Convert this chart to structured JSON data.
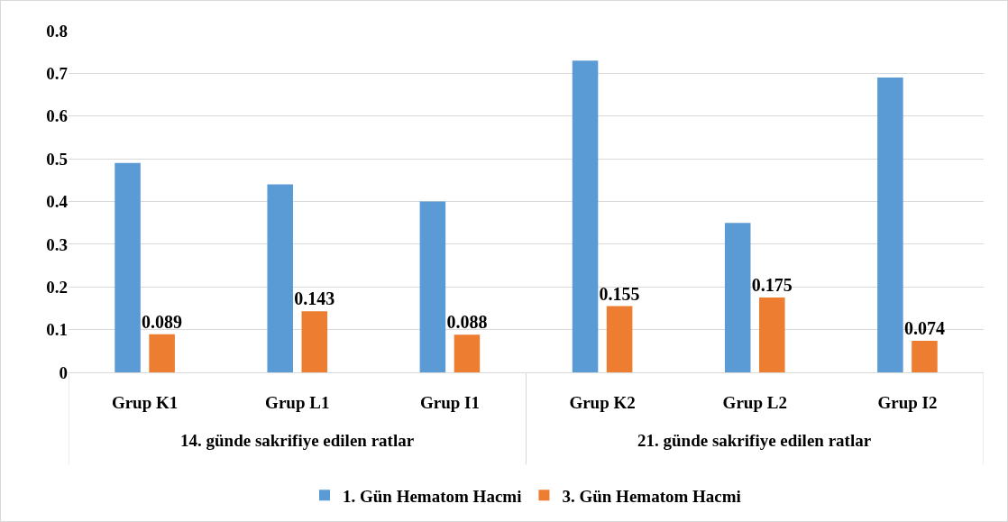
{
  "chart_data": {
    "type": "bar",
    "categories": [
      "Grup K1",
      "Grup L1",
      "Grup I1",
      "Grup K2",
      "Grup L2",
      "Grup I2"
    ],
    "series": [
      {
        "name": "1. Gün Hematom Hacmi",
        "color": "#5b9bd5",
        "values": [
          0.49,
          0.44,
          0.4,
          0.73,
          0.35,
          0.69
        ]
      },
      {
        "name": "3. Gün Hematom Hacmi",
        "color": "#ed7d31",
        "values": [
          0.089,
          0.143,
          0.088,
          0.155,
          0.175,
          0.074
        ],
        "value_labels": [
          "0.089",
          "0.143",
          "0.088",
          "0.155",
          "0.175",
          "0.074"
        ]
      }
    ],
    "ylim": [
      0,
      0.8
    ],
    "yticks": [
      0,
      0.1,
      0.2,
      0.3,
      0.4,
      0.5,
      0.6,
      0.7,
      0.8
    ],
    "grid": "y",
    "legend": "bottom",
    "annotations": [
      "14. günde sakrifiye edilen ratlar",
      "21. günde sakrifiye edilen ratlar"
    ]
  }
}
